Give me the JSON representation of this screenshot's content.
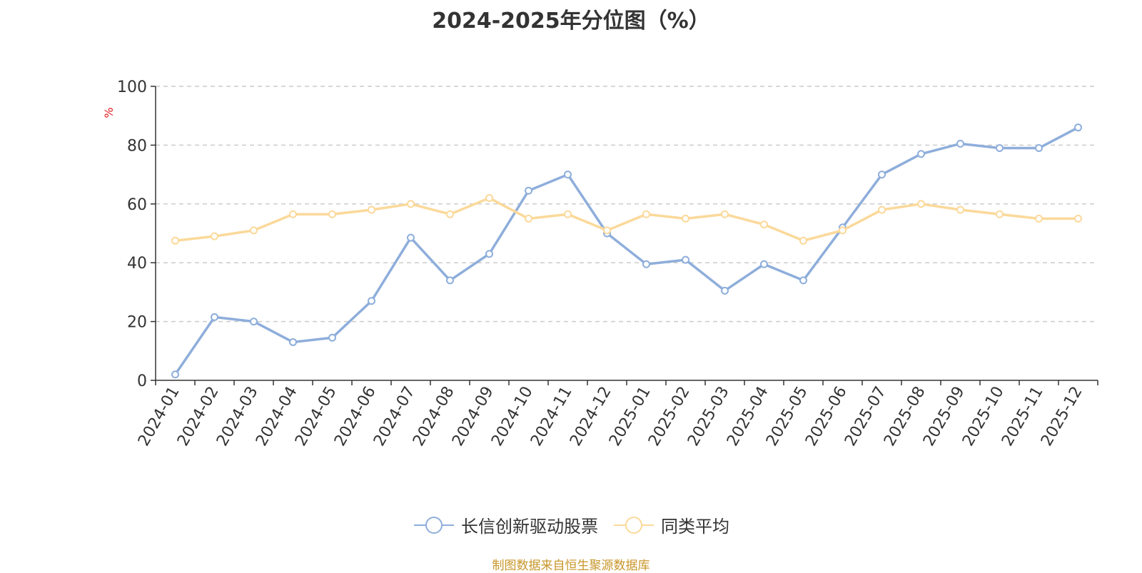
{
  "chart_data": {
    "type": "line",
    "title": "2024-2025年分位图（%）",
    "ylabel": "%",
    "ylim": [
      0,
      100
    ],
    "yticks": [
      0,
      20,
      40,
      60,
      80,
      100
    ],
    "grid": true,
    "legend_placement": "bottom",
    "categories": [
      "2024-01",
      "2024-02",
      "2024-03",
      "2024-04",
      "2024-05",
      "2024-06",
      "2024-07",
      "2024-08",
      "2024-09",
      "2024-10",
      "2024-11",
      "2024-12",
      "2025-01",
      "2025-02",
      "2025-03",
      "2025-04",
      "2025-05",
      "2025-06",
      "2025-07",
      "2025-08",
      "2025-09",
      "2025-10",
      "2025-11",
      "2025-12"
    ],
    "series": [
      {
        "name": "长信创新驱动股票",
        "color": "#8eaedb",
        "values": [
          2,
          21.5,
          20,
          13,
          14.5,
          27,
          48.5,
          34,
          43,
          64.5,
          70,
          50,
          39.5,
          41,
          30.5,
          39.5,
          34,
          52,
          70,
          77,
          80.5,
          79,
          79,
          86
        ]
      },
      {
        "name": "同类平均",
        "color": "#fbd99a",
        "values": [
          47.5,
          49,
          51,
          56.5,
          56.5,
          58,
          60,
          56.5,
          62,
          55,
          56.5,
          51,
          56.5,
          55,
          56.5,
          53,
          47.5,
          51,
          58,
          60,
          58,
          56.5,
          55,
          55
        ]
      }
    ]
  },
  "footer": {
    "source": "制图数据来自恒生聚源数据库"
  }
}
